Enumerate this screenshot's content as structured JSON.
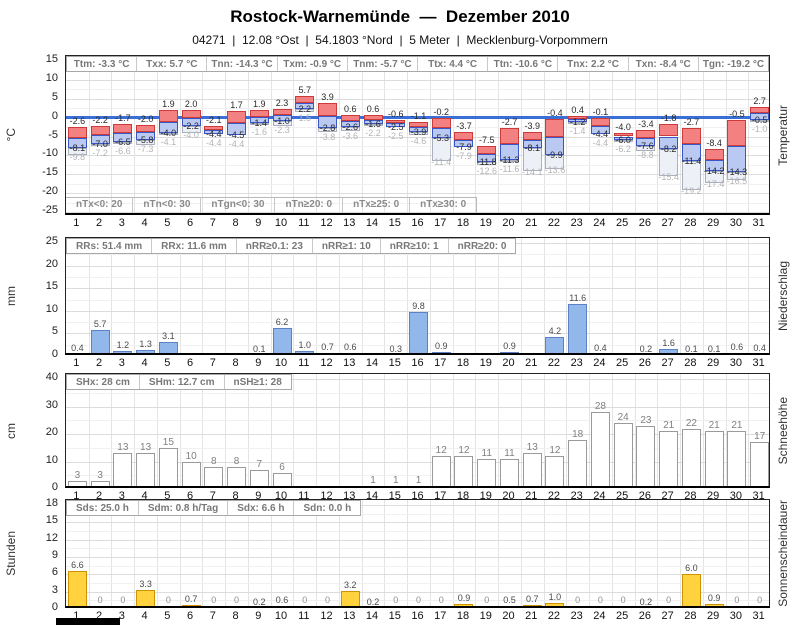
{
  "header": {
    "title": "Rostock-Warnemünde  —  Dezember 2010",
    "subtitle": "04271  |  12.08 °Ost  |  54.1803 °Nord  |  5 Meter  |  Mecklenburg-Vorpommern"
  },
  "days": [
    1,
    2,
    3,
    4,
    5,
    6,
    7,
    8,
    9,
    10,
    11,
    12,
    13,
    14,
    15,
    16,
    17,
    18,
    19,
    20,
    21,
    22,
    23,
    24,
    25,
    26,
    27,
    28,
    29,
    30,
    31
  ],
  "colors": {
    "temp_max_fill": "#f38181",
    "temp_max_border": "#cc3a3a",
    "temp_min_fill": "#b9c9f2",
    "temp_min_border": "#3a57c8",
    "temp_ground_fill": "#eef0f8",
    "temp_ground_border": "#aab0bc",
    "zero_line": "#3a6fd8",
    "precip_fill": "#92b7ea",
    "precip_border": "#5a82c4",
    "snow_fill": "#ffffff",
    "snow_border": "#9a9a9a",
    "sun_fill": "#ffd23e",
    "sun_border": "#cf9200"
  },
  "chart_data": [
    {
      "type": "bar",
      "name": "temperature",
      "label_right": "Temperatur",
      "unit_left": "°C",
      "ylim": [
        -25,
        15
      ],
      "yticks": [
        15,
        10,
        5,
        0,
        -5,
        -10,
        -15,
        -20,
        -25
      ],
      "zero_line": true,
      "stats": [
        "Ttm: -3.3 °C",
        "Txx: 5.7 °C",
        "Tnn: -14.3 °C",
        "Txm: -0.9 °C",
        "Tnm: -5.7 °C",
        "Ttx: 4.4 °C",
        "Ttn: -10.6 °C",
        "Tnx: 2.2 °C",
        "Txn: -8.4 °C",
        "Tgn: -19.2 °C"
      ],
      "counts": [
        "nTx<0: 20",
        "nTn<0: 30",
        "nTgn<0: 30",
        "nTn≥20: 0",
        "nTx≥25: 0",
        "nTx≥30: 0"
      ],
      "series": [
        {
          "name": "Tx",
          "values": [
            -2.6,
            -2.2,
            -1.7,
            -2.0,
            1.9,
            2.0,
            -2.1,
            1.7,
            1.9,
            2.3,
            5.7,
            3.9,
            0.6,
            0.6,
            -0.6,
            -1.1,
            -0.2,
            -3.7,
            -7.5,
            -2.7,
            -3.9,
            -0.4,
            0.4,
            -0.1,
            -4.0,
            -3.4,
            -1.8,
            -2.7,
            -8.4,
            -0.5,
            2.7
          ]
        },
        {
          "name": "Tn",
          "values": [
            -8.1,
            -7.0,
            -6.5,
            -5.8,
            -4.0,
            -2.2,
            -4.4,
            -4.5,
            -1.4,
            -1.0,
            2.2,
            -2.8,
            -2.6,
            -1.6,
            -2.5,
            -3.9,
            -5.3,
            -7.9,
            -11.8,
            -11.3,
            -8.1,
            -9.9,
            -1.2,
            -4.4,
            -6.0,
            -7.6,
            -8.2,
            -11.4,
            -14.2,
            -14.3,
            -0.5
          ]
        },
        {
          "name": "Tgn",
          "values": [
            -9.8,
            -7.2,
            -6.6,
            -7.3,
            -4.1,
            -4.0,
            -4.4,
            -4.4,
            -1.6,
            -2.3,
            1.5,
            -3.8,
            -3.6,
            -2.2,
            -2.5,
            -4.6,
            -11.4,
            -7.9,
            -12.6,
            -11.6,
            -14.1,
            -13.6,
            -1.4,
            -4.4,
            -6.2,
            -8.8,
            -15.4,
            -19.2,
            -17.4,
            -16.5,
            -1.0
          ]
        }
      ]
    },
    {
      "type": "bar",
      "name": "precipitation",
      "label_right": "Niederschlag",
      "unit_left": "mm",
      "ylim": [
        0,
        25
      ],
      "yticks": [
        25,
        20,
        15,
        10,
        5,
        0
      ],
      "stats": [
        "RRs: 51.4 mm",
        "RRx: 11.6 mm",
        "nRR≥0.1: 23",
        "nRR≥1: 10",
        "nRR≥10: 1",
        "nRR≥20: 0"
      ],
      "values": [
        0.4,
        5.7,
        1.2,
        1.3,
        3.1,
        null,
        null,
        null,
        0.1,
        6.2,
        1.0,
        0.7,
        0.6,
        null,
        0.3,
        9.8,
        0.9,
        null,
        null,
        0.9,
        null,
        4.2,
        11.6,
        0.4,
        null,
        0.2,
        1.6,
        0.1,
        0.1,
        0.6,
        0.4
      ]
    },
    {
      "type": "bar",
      "name": "snow",
      "label_right": "Schneehöhe",
      "unit_left": "cm",
      "ylim": [
        0,
        40
      ],
      "yticks": [
        40,
        30,
        20,
        10,
        0
      ],
      "format": "int",
      "stats": [
        "SHx: 28 cm",
        "SHm: 12.7 cm",
        "nSH≥1: 28"
      ],
      "values": [
        3,
        3,
        13,
        13,
        15,
        10,
        8,
        8,
        7,
        6,
        null,
        null,
        null,
        1,
        1,
        1,
        12,
        12,
        11,
        11,
        13,
        12,
        18,
        28,
        24,
        23,
        21,
        22,
        21,
        21,
        17
      ]
    },
    {
      "type": "bar",
      "name": "sunshine",
      "label_right": "Sonnenscheindauer",
      "unit_left": "Stunden",
      "ylim": [
        0,
        18
      ],
      "yticks": [
        18,
        15,
        12,
        9,
        6,
        3,
        0
      ],
      "stats": [
        "Sds: 25.0 h",
        "Sdm: 0.8 h/Tag",
        "Sdx: 6.6 h",
        "Sdn: 0.0 h"
      ],
      "values": [
        6.6,
        0,
        0,
        3.3,
        0,
        0.7,
        0,
        0,
        0.2,
        0.6,
        0,
        0,
        3.2,
        0.2,
        0,
        0,
        0,
        0.9,
        0,
        0.5,
        0.7,
        1.0,
        0,
        0,
        0,
        0.2,
        0,
        6.0,
        0.9,
        0,
        0
      ]
    }
  ]
}
